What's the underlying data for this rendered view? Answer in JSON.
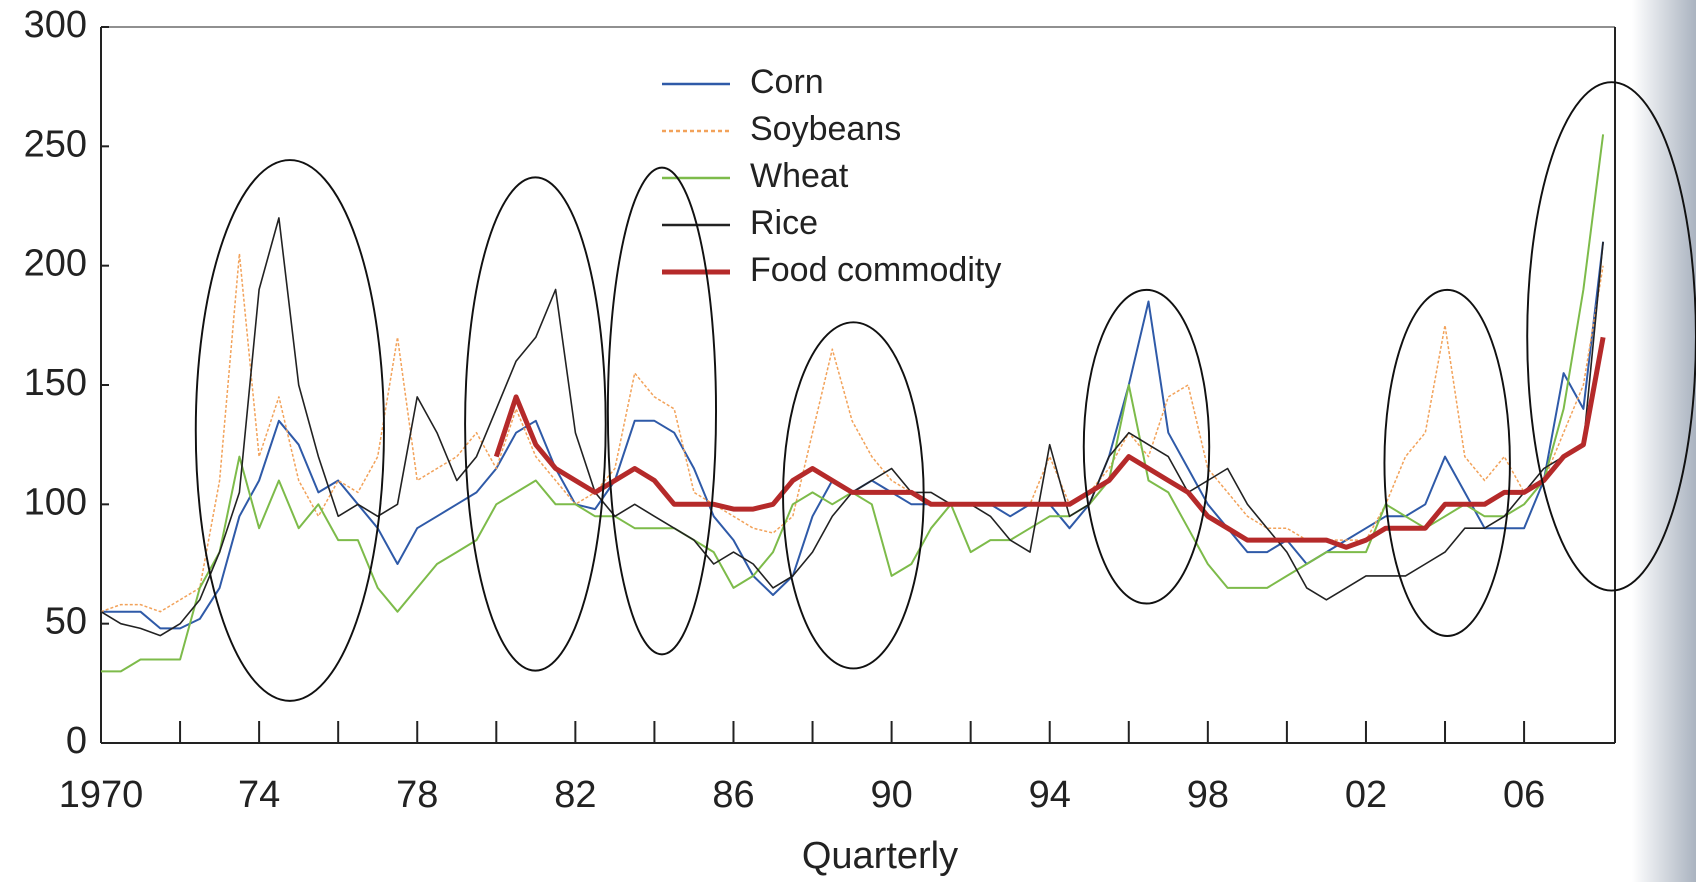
{
  "chart_data": {
    "type": "line",
    "xlabel": "Quarterly",
    "x": [
      1970,
      1970.5,
      1971,
      1971.5,
      1972,
      1972.5,
      1973,
      1973.5,
      1974,
      1974.5,
      1975,
      1975.5,
      1976,
      1976.5,
      1977,
      1977.5,
      1978,
      1978.5,
      1979,
      1979.5,
      1980,
      1980.5,
      1981,
      1981.5,
      1982,
      1982.5,
      1983,
      1983.5,
      1984,
      1984.5,
      1985,
      1985.5,
      1986,
      1986.5,
      1987,
      1987.5,
      1988,
      1988.5,
      1989,
      1989.5,
      1990,
      1990.5,
      1991,
      1991.5,
      1992,
      1992.5,
      1993,
      1993.5,
      1994,
      1994.5,
      1995,
      1995.5,
      1996,
      1996.5,
      1997,
      1997.5,
      1998,
      1998.5,
      1999,
      1999.5,
      2000,
      2000.5,
      2001,
      2001.5,
      2002,
      2002.5,
      2003,
      2003.5,
      2004,
      2004.5,
      2005,
      2005.5,
      2006,
      2006.5,
      2007,
      2007.5,
      2008
    ],
    "series": [
      {
        "name": "Corn",
        "color": "#2f5aa8",
        "linewidth": 2,
        "dashed": false,
        "values": [
          55,
          55,
          55,
          48,
          48,
          52,
          65,
          95,
          110,
          135,
          125,
          105,
          110,
          100,
          90,
          75,
          90,
          95,
          100,
          105,
          115,
          130,
          135,
          115,
          100,
          98,
          110,
          135,
          135,
          130,
          115,
          95,
          85,
          70,
          62,
          70,
          95,
          110,
          105,
          110,
          105,
          100,
          100,
          100,
          100,
          100,
          95,
          100,
          100,
          90,
          100,
          120,
          150,
          185,
          130,
          115,
          100,
          90,
          80,
          80,
          85,
          75,
          80,
          85,
          90,
          95,
          95,
          100,
          120,
          105,
          90,
          90,
          90,
          110,
          155,
          140,
          210
        ]
      },
      {
        "name": "Soybeans",
        "color": "#f2a25a",
        "linewidth": 1.5,
        "dashed": true,
        "values": [
          55,
          58,
          58,
          55,
          60,
          65,
          110,
          205,
          120,
          145,
          110,
          95,
          110,
          105,
          120,
          170,
          110,
          115,
          120,
          130,
          115,
          140,
          120,
          110,
          100,
          105,
          115,
          155,
          145,
          140,
          105,
          100,
          95,
          90,
          88,
          95,
          130,
          165,
          135,
          120,
          110,
          105,
          100,
          100,
          100,
          100,
          100,
          100,
          120,
          100,
          105,
          115,
          130,
          120,
          145,
          150,
          115,
          105,
          95,
          90,
          90,
          85,
          85,
          85,
          85,
          100,
          120,
          130,
          175,
          120,
          110,
          120,
          105,
          110,
          130,
          150,
          200
        ]
      },
      {
        "name": "Wheat",
        "color": "#7dbb4a",
        "linewidth": 2,
        "dashed": false,
        "values": [
          30,
          30,
          35,
          35,
          35,
          65,
          80,
          120,
          90,
          110,
          90,
          100,
          85,
          85,
          65,
          55,
          65,
          75,
          80,
          85,
          100,
          105,
          110,
          100,
          100,
          95,
          95,
          90,
          90,
          90,
          85,
          80,
          65,
          70,
          80,
          100,
          105,
          100,
          105,
          100,
          70,
          75,
          90,
          100,
          80,
          85,
          85,
          90,
          95,
          95,
          100,
          110,
          150,
          110,
          105,
          90,
          75,
          65,
          65,
          65,
          70,
          75,
          80,
          80,
          80,
          100,
          95,
          90,
          95,
          100,
          95,
          95,
          100,
          110,
          140,
          190,
          255
        ]
      },
      {
        "name": "Rice",
        "color": "#222222",
        "linewidth": 1.6,
        "dashed": false,
        "values": [
          55,
          50,
          48,
          45,
          50,
          60,
          80,
          105,
          190,
          220,
          150,
          120,
          95,
          100,
          95,
          100,
          145,
          130,
          110,
          120,
          140,
          160,
          170,
          190,
          130,
          105,
          95,
          100,
          95,
          90,
          85,
          75,
          80,
          75,
          65,
          70,
          80,
          95,
          105,
          110,
          115,
          105,
          105,
          100,
          100,
          95,
          85,
          80,
          125,
          95,
          100,
          120,
          130,
          125,
          120,
          105,
          110,
          115,
          100,
          90,
          80,
          65,
          60,
          65,
          70,
          70,
          70,
          75,
          80,
          90,
          90,
          95,
          105,
          115,
          120,
          125,
          210
        ]
      },
      {
        "name": "Food commodity",
        "color": "#b52a2a",
        "linewidth": 5,
        "dashed": false,
        "values": [
          null,
          null,
          null,
          null,
          null,
          null,
          null,
          null,
          null,
          null,
          null,
          null,
          null,
          null,
          null,
          null,
          null,
          null,
          null,
          null,
          120,
          145,
          125,
          115,
          110,
          105,
          110,
          115,
          110,
          100,
          100,
          100,
          98,
          98,
          100,
          110,
          115,
          110,
          105,
          105,
          105,
          105,
          100,
          100,
          100,
          100,
          100,
          100,
          100,
          100,
          105,
          110,
          120,
          115,
          110,
          105,
          95,
          90,
          85,
          85,
          85,
          85,
          85,
          82,
          85,
          90,
          90,
          90,
          100,
          100,
          100,
          105,
          105,
          110,
          120,
          125,
          170
        ]
      }
    ],
    "xlim": [
      1970,
      2008.3
    ],
    "xticks": [
      1970,
      {
        "value": 1974,
        "label": "74"
      },
      {
        "value": 1978,
        "label": "78"
      },
      {
        "value": 1982,
        "label": "82"
      },
      {
        "value": 1986,
        "label": "86"
      },
      {
        "value": 1990,
        "label": "90"
      },
      {
        "value": 1994,
        "label": "94"
      },
      {
        "value": 1998,
        "label": "98"
      },
      {
        "value": 2002,
        "label": "02"
      },
      {
        "value": 2006,
        "label": "06"
      }
    ],
    "ylim": [
      0,
      300
    ],
    "yticks": [
      0,
      50,
      100,
      150,
      200,
      250,
      300
    ]
  }
}
